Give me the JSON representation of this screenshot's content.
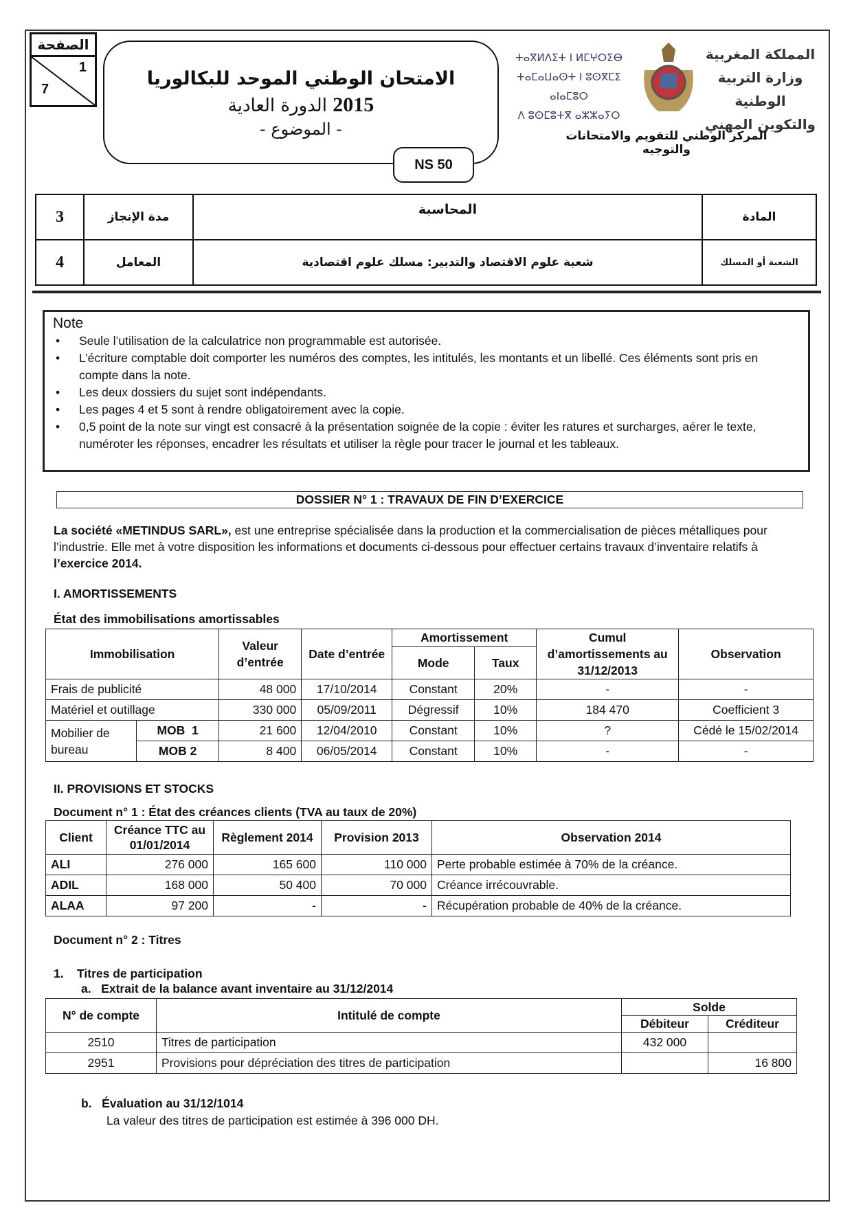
{
  "header": {
    "page_label": "الصفحة",
    "page_current": "1",
    "page_total": "7",
    "exam_title": "الامتحان الوطني الموحد للبكالوريا",
    "session": "الدورة العادية",
    "year": "2015",
    "subject_label": "- الموضوع -",
    "code": "NS 50",
    "logo_ar": [
      "المملكة المغربية",
      "وزارة التربية الوطنية",
      "والتكوين المهني"
    ],
    "logo_tifinagh": [
      "ⵜⴰⴳⵍⴷⵉⵜ ⵏ ⵍⵎⵖⵔⵉⴱ",
      "ⵜⴰⵎⴰⵡⴰⵙⵜ ⵏ ⵓⵙⴳⵎⵉ ⴰⵏⴰⵎⵓⵔ",
      "ⴷ ⵓⵙⵎⵓⵜⴳ ⴰⵣⵣⴰⵢⵔ"
    ],
    "center_name": "المركز الوطني للتقويم والامتحانات والتوجيه"
  },
  "info": {
    "subject_label": "المادة",
    "subject": "المحاسبة",
    "duration_label": "مدة الإنجاز",
    "duration": "3",
    "branch_label": "الشعبة أو المسلك",
    "branch": "شعبة علوم الاقتصاد والتدبير: مسلك علوم اقتصادية",
    "coef_label": "المعامل",
    "coef": "4"
  },
  "note": {
    "title": "Note",
    "items": [
      "Seule l’utilisation de la calculatrice non programmable est autorisée.",
      "L’écriture comptable doit comporter les numéros des comptes, les intitulés, les montants et un libellé. Ces éléments sont pris en compte dans la note.",
      "Les deux dossiers du sujet sont indépendants.",
      "Les pages 4 et 5 sont à rendre obligatoirement avec la copie.",
      "0,5 point de la note sur vingt est consacré à la présentation soignée de la copie : éviter les ratures et surcharges, aérer le texte, numéroter les réponses, encadrer les résultats et utiliser la règle pour tracer le journal et les tableaux."
    ]
  },
  "dossier_title": "DOSSIER N° 1 : TRAVAUX DE FIN D’EXERCICE",
  "intro": {
    "company": "La société «METINDUS SARL»,",
    "text": " est une entreprise spécialisée dans la production et la commercialisation de pièces métalliques pour l’industrie. Elle met à votre disposition les informations et documents ci-dessous pour effectuer certains travaux d’inventaire relatifs à ",
    "year": "l’exercice 2014."
  },
  "section1": {
    "title": "I. AMORTISSEMENTS",
    "table_title": "État des immobilisations amortissables",
    "headers": {
      "immo": "Immobilisation",
      "valeur": "Valeur d’entrée",
      "date": "Date d’entrée",
      "amort": "Amortissement",
      "mode": "Mode",
      "taux": "Taux",
      "cumul": "Cumul d’amortissements au 31/12/2013",
      "obs": "Observation"
    },
    "rows": [
      {
        "name": "Frais de publicité",
        "valeur": "48 000",
        "date": "17/10/2014",
        "mode": "Constant",
        "taux": "20%",
        "cumul": "-",
        "obs": "-"
      },
      {
        "name": "Matériel et outillage",
        "valeur": "330 000",
        "date": "05/09/2011",
        "mode": "Dégressif",
        "taux": "10%",
        "cumul": "184 470",
        "obs": "Coefficient 3"
      },
      {
        "group": "Mobilier de bureau",
        "name": "MOB  1",
        "valeur": "21 600",
        "date": "12/04/2010",
        "mode": "Constant",
        "taux": "10%",
        "cumul": "?",
        "obs": "Cédé le 15/02/2014"
      },
      {
        "name": "MOB 2",
        "valeur": "8 400",
        "date": "06/05/2014",
        "mode": "Constant",
        "taux": "10%",
        "cumul": "-",
        "obs": "-"
      }
    ]
  },
  "section2": {
    "title": "II. PROVISIONS ET STOCKS",
    "doc1_title": "Document n° 1 : État des créances clients (TVA au taux de 20%)",
    "headers": {
      "client": "Client",
      "creance": "Créance TTC au 01/01/2014",
      "reglement": "Règlement 2014",
      "provision": "Provision 2013",
      "obs": "Observation 2014"
    },
    "rows": [
      {
        "client": "ALI",
        "creance": "276 000",
        "reglement": "165 600",
        "provision": "110 000",
        "obs": "Perte probable estimée à 70% de la créance."
      },
      {
        "client": "ADIL",
        "creance": "168 000",
        "reglement": "50 400",
        "provision": "70 000",
        "obs": "Créance irrécouvrable."
      },
      {
        "client": "ALAA",
        "creance": "97 200",
        "reglement": "-",
        "provision": "-",
        "obs": "Récupération probable de 40% de la créance."
      }
    ],
    "doc2_title": "Document n° 2 : Titres",
    "sub1": "1.    Titres de participation",
    "sub1a": "a.   Extrait de la balance avant inventaire au 31/12/2014",
    "balance_headers": {
      "num": "N° de compte",
      "intitule": "Intitulé de compte",
      "solde": "Solde",
      "debit": "Débiteur",
      "credit": "Créditeur"
    },
    "balance_rows": [
      {
        "num": "2510",
        "intitule": "Titres de participation",
        "debit": "432 000",
        "credit": ""
      },
      {
        "num": "2951",
        "intitule": "Provisions pour dépréciation des titres de participation",
        "debit": "",
        "credit": "16 800"
      }
    ],
    "sub1b": "b.   Évaluation au 31/12/1014",
    "sub1b_text": "La valeur des titres de participation est estimée à 396 000 DH."
  }
}
